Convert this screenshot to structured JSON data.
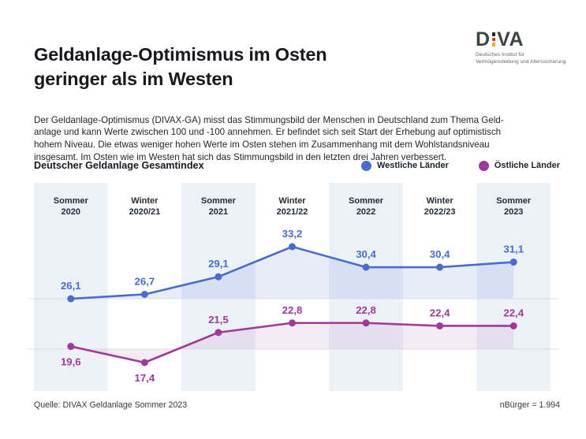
{
  "header": {
    "title": "Geldanlage-Optimismus im Osten\ngeringer als im Westen",
    "logo": {
      "part1": "D",
      "part2": "VA",
      "subtitle": "Deutsches Institut für\nVermögensbildung und Alterssicherung",
      "dot_colors": [
        "#231f20",
        "#dd3227",
        "#f2a900"
      ]
    }
  },
  "intro_text": "Der Geldanlage-Optimismus (DIVAX-GA) misst das Stimmungsbild der Menschen in Deutschland zum Thema Geld-\nanlage und kann Werte zwischen 100 und -100 annehmen. Er befindet sich seit Start der Erhebung auf optimistisch\nhohem Niveau. Die etwas weniger hohen Werte im Osten stehen im Zusammenhang mit dem Wohlstandsniveau\ninsgesamt. Im Osten wie im Westen hat sich das Stimmungsbild in den letzten drei Jahren verbessert.",
  "section": {
    "title": "Deutscher Geldanlage Gesamtindex"
  },
  "legend": [
    {
      "label": "Westliche Länder",
      "color": "#4a6cce"
    },
    {
      "label": "Östliche Länder",
      "color": "#a1399b"
    }
  ],
  "chart_data": {
    "type": "line",
    "title": "Deutscher Geldanlage Gesamtindex",
    "categories": [
      "Sommer 2020",
      "Winter 2020/21",
      "Sommer 2021",
      "Winter 2021/22",
      "Sommer 2022",
      "Winter 2022/23",
      "Sommer 2023"
    ],
    "series": [
      {
        "name": "Westliche Länder",
        "color": "#4a6cce",
        "values": [
          26.1,
          26.7,
          29.1,
          33.2,
          30.4,
          30.4,
          31.1
        ],
        "fill_opacity": 0.13,
        "label_side": [
          "above",
          "above",
          "above",
          "above",
          "above",
          "above",
          "above"
        ]
      },
      {
        "name": "Östliche Länder",
        "color": "#a1399b",
        "values": [
          19.6,
          17.4,
          21.5,
          22.8,
          22.8,
          22.4,
          22.4
        ],
        "fill_opacity": 0.1,
        "label_side": [
          "below",
          "below",
          "above",
          "above",
          "above",
          "above",
          "above"
        ]
      }
    ],
    "value_range_note": "Index kann Werte zwischen 100 und -100 annehmen",
    "decimal_format": "german-comma",
    "layout": {
      "shaded_columns": "Sommer",
      "stripe_color": "#ecf1f8",
      "grid_on": true,
      "legend_position": "top-right",
      "area_fill_to_baseline": true
    }
  },
  "footer": {
    "source": "Quelle: DIVAX Geldanlage Sommer 2023",
    "sample": "nBürger = 1.994"
  }
}
